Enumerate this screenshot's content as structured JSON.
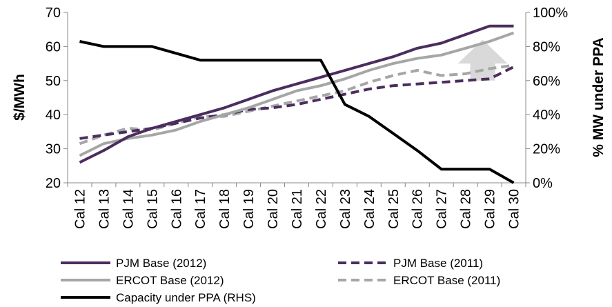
{
  "chart_data": {
    "type": "line",
    "title": "",
    "ylabel": "$/MWh",
    "y2label": "% MW under PPA",
    "ylim": [
      20,
      70
    ],
    "y2lim": [
      0,
      100
    ],
    "yticks": [
      "20",
      "30",
      "40",
      "50",
      "60",
      "70"
    ],
    "y2ticks": [
      "0%",
      "20%",
      "40%",
      "60%",
      "80%",
      "100%"
    ],
    "categories": [
      "Cal 12",
      "Cal 13",
      "Cal 14",
      "Cal 15",
      "Cal 16",
      "Cal 17",
      "Cal 18",
      "Cal 19",
      "Cal 20",
      "Cal 21",
      "Cal 22",
      "Cal 23",
      "Cal 24",
      "Cal 25",
      "Cal 26",
      "Cal 27",
      "Cal 28",
      "Cal 29",
      "Cal 30"
    ],
    "grid": false,
    "legend_position": "bottom",
    "series": [
      {
        "name": "PJM Base (2012)",
        "axis": "left",
        "color": "#4B2D5E",
        "dash": "solid",
        "values": [
          26,
          29.5,
          33.5,
          36,
          38,
          40,
          42,
          44.5,
          47,
          49,
          51,
          53,
          55,
          57,
          59.5,
          61,
          63.5,
          66,
          66
        ]
      },
      {
        "name": "PJM Base (2011)",
        "axis": "left",
        "color": "#4B2D5E",
        "dash": "dashed",
        "values": [
          33,
          34,
          35,
          36,
          37.5,
          39,
          40,
          41.5,
          42,
          43,
          44.5,
          46,
          47.5,
          48.5,
          49,
          49.5,
          50,
          50.5,
          54
        ]
      },
      {
        "name": "ERCOT Base (2012)",
        "axis": "left",
        "color": "#A6A6A6",
        "dash": "solid",
        "values": [
          28,
          31.5,
          33,
          34,
          35.5,
          38,
          40,
          42,
          44.5,
          47,
          48.5,
          50.5,
          53,
          55,
          56.5,
          57.5,
          59.5,
          61.5,
          64
        ]
      },
      {
        "name": "ERCOT Base (2011)",
        "axis": "left",
        "color": "#A6A6A6",
        "dash": "dashed",
        "values": [
          31.5,
          34,
          36,
          35.5,
          37.5,
          39.5,
          39.5,
          41,
          42.5,
          44,
          45.5,
          47,
          49.5,
          51.5,
          53,
          51.5,
          52,
          53.5,
          54.5
        ]
      },
      {
        "name": "Capacity under PPA (RHS)",
        "axis": "right",
        "color": "#000000",
        "dash": "solid",
        "values": [
          83,
          80,
          80,
          80,
          76,
          72,
          72,
          72,
          72,
          72,
          72,
          46,
          39,
          29,
          19,
          8,
          8,
          8,
          0
        ]
      }
    ],
    "annotations": [
      {
        "type": "up-arrow",
        "color": "#D9D9D9",
        "near": "Cal 29"
      }
    ]
  }
}
